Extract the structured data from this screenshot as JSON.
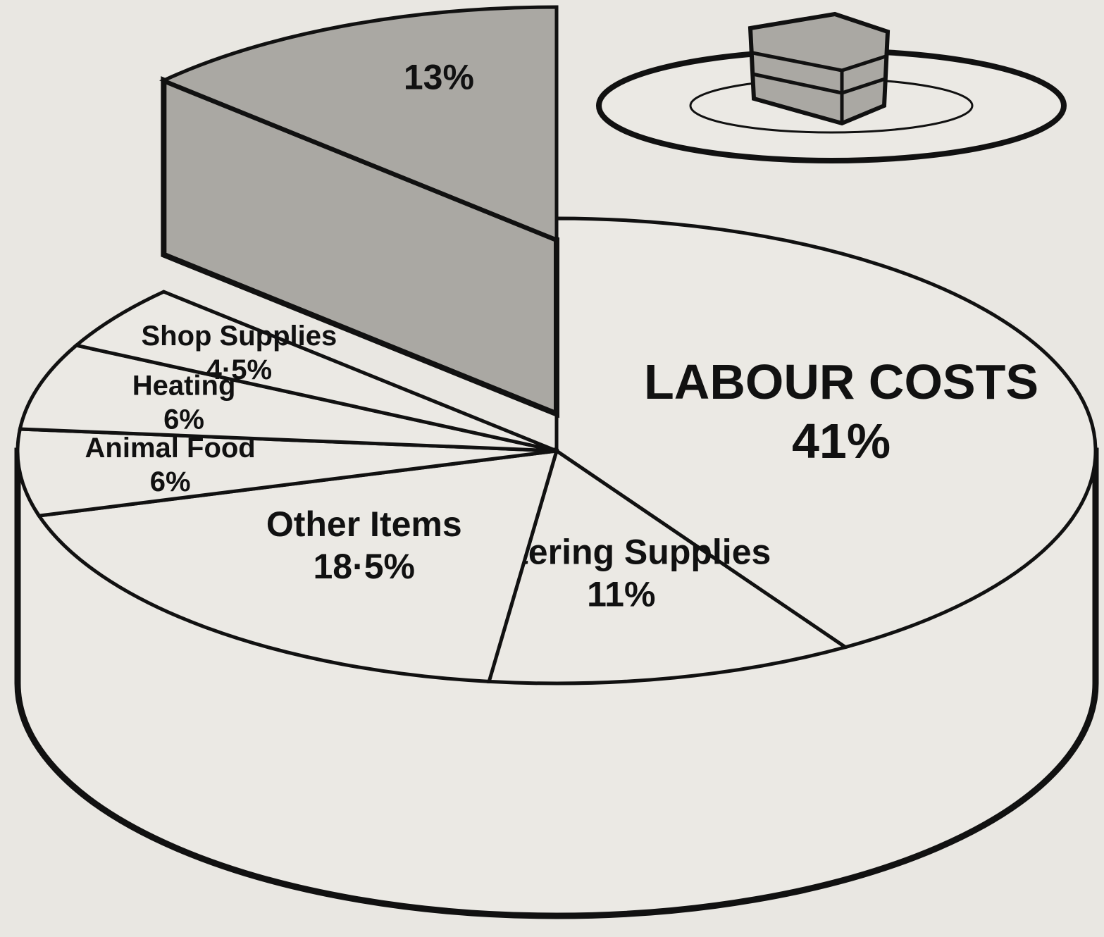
{
  "chart_data": {
    "type": "pie",
    "categories": [
      "LABOUR COSTS",
      "Catering Supplies",
      "Other Items",
      "Animal Food",
      "Heating",
      "Shop Supplies",
      null
    ],
    "values": [
      41,
      11,
      18.5,
      6,
      6,
      4.5,
      13
    ],
    "value_labels": [
      "41%",
      "11%",
      "18·5%",
      "6%",
      "6%",
      "4·5%",
      "13%"
    ],
    "colors": [
      "#ebe9e4",
      "#ebe9e4",
      "#ebe9e4",
      "#ebe9e4",
      "#ebe9e4",
      "#ebe9e4",
      "#aaa8a3"
    ],
    "exploded": [
      false,
      false,
      false,
      false,
      false,
      false,
      true
    ]
  }
}
